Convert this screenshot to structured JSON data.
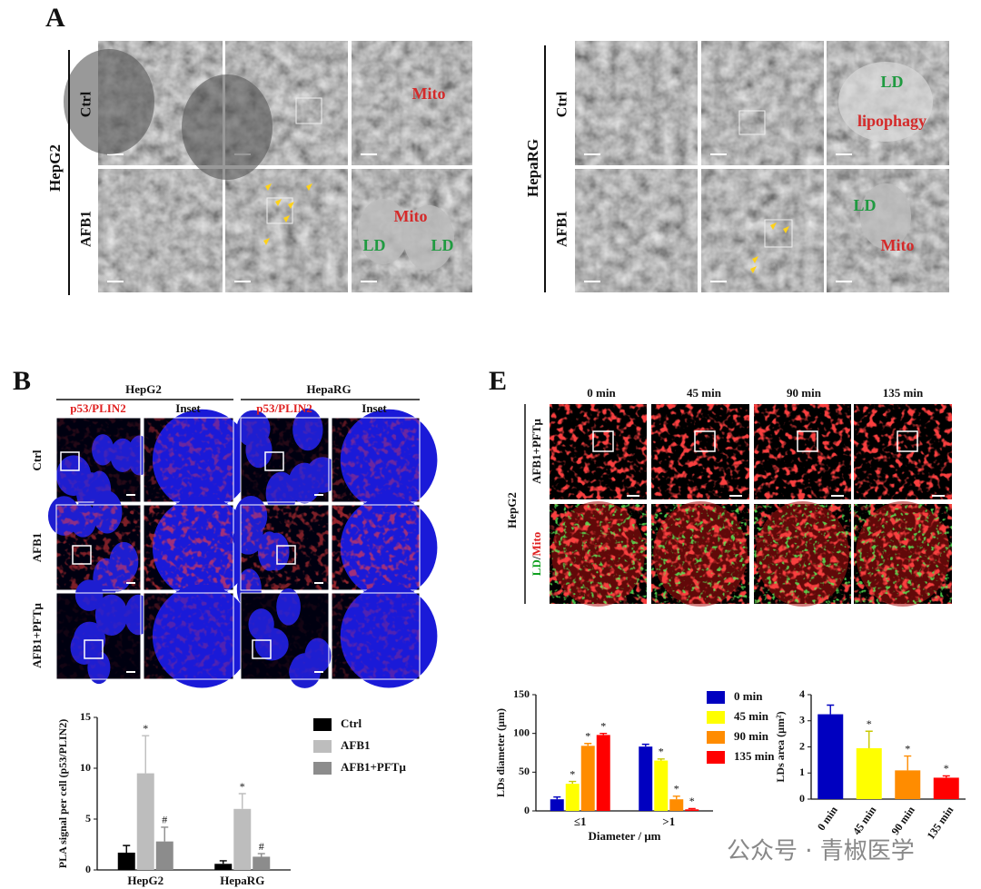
{
  "panel_a": {
    "label": "A",
    "hepg2": {
      "name": "HepG2",
      "rows": [
        "Ctrl",
        "AFB1"
      ],
      "ctrl_labels": [
        "Mito"
      ],
      "afb1_labels": [
        "Mito",
        "LD",
        "LD"
      ]
    },
    "heparg": {
      "name": "HepaRG",
      "rows": [
        "Ctrl",
        "AFB1"
      ],
      "ctrl_labels": [
        "LD",
        "lipophagy"
      ],
      "afb1_labels": [
        "LD",
        "Mito"
      ]
    }
  },
  "panel_b": {
    "label": "B",
    "groups": [
      "HepG2",
      "HepaRG"
    ],
    "columns": [
      "p53/PLIN2",
      "Inset"
    ],
    "rows": [
      "Ctrl",
      "AFB1",
      "AFB1+PFTμ"
    ]
  },
  "panel_e": {
    "label": "E",
    "times": [
      "0 min",
      "45 min",
      "90 min",
      "135 min"
    ],
    "cell_line": "HepG2",
    "treatment": "AFB1+PFTμ",
    "stain": [
      "LD",
      "/",
      "Mito"
    ]
  },
  "watermark": "公众号 · 青椒医学",
  "chart_data": [
    {
      "type": "bar",
      "ylabel": "PLA signal per cell (p53/PLIN2)",
      "categories": [
        "HepG2",
        "HepaRG"
      ],
      "series": [
        {
          "name": "Ctrl",
          "color": "#000000",
          "values": [
            1.7,
            0.6
          ],
          "errors": [
            0.7,
            0.3
          ]
        },
        {
          "name": "AFB1",
          "color": "#bdbdbd",
          "values": [
            9.5,
            6.0
          ],
          "errors": [
            3.7,
            1.5
          ],
          "annotations": [
            "*",
            "*"
          ]
        },
        {
          "name": "AFB1+PFTμ",
          "color": "#8c8c8c",
          "values": [
            2.8,
            1.3
          ],
          "errors": [
            1.4,
            0.3
          ],
          "annotations": [
            "#",
            "#"
          ]
        }
      ],
      "ylim": [
        0,
        15
      ],
      "yticks": [
        0,
        5,
        10,
        15
      ],
      "legend": "right"
    },
    {
      "type": "bar",
      "ylabel": "LDs diameter (μm)",
      "xlabel": "Diameter / μm",
      "categories": [
        "≤1",
        ">1"
      ],
      "series": [
        {
          "name": "0 min",
          "color": "#0000c0",
          "values": [
            15,
            83
          ],
          "errors": [
            3,
            3
          ]
        },
        {
          "name": "45 min",
          "color": "#ffff00",
          "values": [
            35,
            65
          ],
          "errors": [
            3,
            2
          ],
          "annotations": [
            "*",
            "*"
          ]
        },
        {
          "name": "90 min",
          "color": "#ff8c00",
          "values": [
            84,
            15
          ],
          "errors": [
            3,
            4
          ],
          "annotations": [
            "*",
            "*"
          ]
        },
        {
          "name": "135 min",
          "color": "#ff0000",
          "values": [
            98,
            2
          ],
          "errors": [
            2,
            1
          ],
          "annotations": [
            "*",
            "*"
          ]
        }
      ],
      "ylim": [
        0,
        150
      ],
      "yticks": [
        0,
        50,
        100,
        150
      ],
      "legend": "right"
    },
    {
      "type": "bar",
      "ylabel": "LDs area (μm²)",
      "categories": [
        "0 min",
        "45 min",
        "90 min",
        "135 min"
      ],
      "series": [
        {
          "colors": [
            "#0000c0",
            "#ffff00",
            "#ff8c00",
            "#ff0000"
          ],
          "values": [
            3.25,
            1.95,
            1.1,
            0.82
          ],
          "errors": [
            0.35,
            0.65,
            0.55,
            0.07
          ],
          "annotations": [
            null,
            "*",
            "*",
            "*"
          ]
        }
      ],
      "ylim": [
        0,
        4
      ],
      "yticks": [
        0,
        1,
        2,
        3,
        4
      ]
    }
  ]
}
